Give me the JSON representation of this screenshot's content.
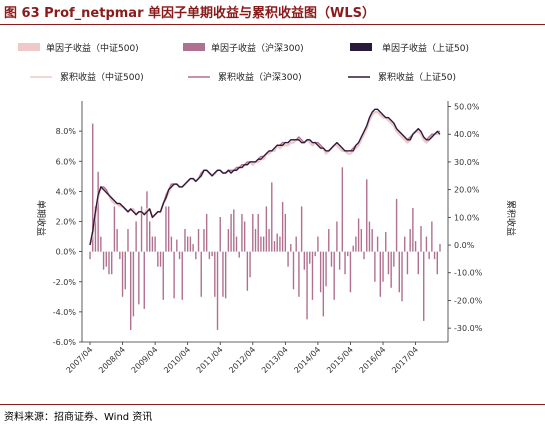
{
  "figure": {
    "title": "图 63 Prof_netpmar 单因子单期收益与累积收益图（WLS）",
    "source": "资料来源：招商证券、Wind 资讯"
  },
  "colors": {
    "zz500": "#efc9c9",
    "hs300": "#b07090",
    "sz50": "#2a1a3a",
    "title_red": "#8b1a1a"
  },
  "chart_data": {
    "type": "bar+line",
    "legend": [
      {
        "label": "单因子收益（中证500)",
        "kind": "bar",
        "color_key": "zz500"
      },
      {
        "label": "单因子收益（沪深300)",
        "kind": "bar",
        "color_key": "hs300"
      },
      {
        "label": "单因子收益（上证50)",
        "kind": "bar",
        "color_key": "sz50"
      },
      {
        "label": "累积收益（中证500)",
        "kind": "line",
        "color_key": "zz500"
      },
      {
        "label": "累积收益（沪深300)",
        "kind": "line",
        "color_key": "hs300"
      },
      {
        "label": "累积收益（上证50)",
        "kind": "line",
        "color_key": "sz50"
      }
    ],
    "left_axis": {
      "label": "单期收益",
      "ylim": [
        -6,
        10
      ],
      "ticks": [
        "-6.0%",
        "-4.0%",
        "-2.0%",
        "0.0%",
        "2.0%",
        "4.0%",
        "6.0%",
        "8.0%"
      ],
      "tick_values": [
        -6,
        -4,
        -2,
        0,
        2,
        4,
        6,
        8
      ]
    },
    "right_axis": {
      "label": "累积收益",
      "ylim": [
        -35,
        52
      ],
      "ticks": [
        "-30.0%",
        "-20.0%",
        "-10.0%",
        "0.0%",
        "10.0%",
        "20.0%",
        "30.0%",
        "40.0%",
        "50.0%"
      ],
      "tick_values": [
        -30,
        -20,
        -10,
        0,
        10,
        20,
        30,
        40,
        50
      ]
    },
    "x_axis": {
      "start_month": "2007/04",
      "n_months": 130,
      "tick_labels": [
        "2007/04",
        "2008/04",
        "2009/04",
        "2010/04",
        "2011/04",
        "2012/04",
        "2013/04",
        "2014/04",
        "2015/04",
        "2016/04",
        "2017/04"
      ]
    },
    "cumulative_zz500": [
      0,
      4,
      11,
      17,
      21,
      20,
      19,
      18,
      16,
      15,
      15,
      14,
      14,
      13,
      12,
      13,
      13,
      11,
      12,
      12,
      11,
      13,
      13,
      10,
      11,
      12,
      12,
      15,
      17,
      19,
      21,
      22,
      22,
      21,
      21,
      22,
      23,
      24,
      24,
      23,
      24,
      25,
      27,
      27,
      26,
      25,
      26,
      27,
      27,
      26,
      26,
      27,
      26,
      27,
      27,
      28,
      28,
      29,
      29,
      30,
      29,
      30,
      30,
      31,
      31,
      33,
      33,
      34,
      34,
      36,
      35,
      36,
      36,
      36,
      37,
      37,
      38,
      38,
      37,
      37,
      38,
      37,
      36,
      37,
      36,
      35,
      35,
      33,
      34,
      35,
      36,
      36,
      35,
      34,
      34,
      33,
      33,
      34,
      35,
      36,
      38,
      40,
      42,
      45,
      47,
      48,
      48,
      47,
      46,
      46,
      45,
      44,
      43,
      41,
      40,
      39,
      38,
      37,
      38,
      40,
      41,
      41,
      40,
      38,
      37,
      38,
      39,
      40,
      40,
      40
    ],
    "cumulative_hs300": [
      0,
      5,
      12,
      18,
      21,
      21,
      20,
      18,
      17,
      16,
      15,
      15,
      14,
      13,
      12,
      13,
      12,
      11,
      12,
      12,
      11,
      12,
      13,
      10,
      11,
      12,
      12,
      15,
      18,
      20,
      22,
      22,
      22,
      21,
      21,
      22,
      23,
      24,
      24,
      23,
      24,
      26,
      27,
      27,
      26,
      25,
      26,
      27,
      27,
      26,
      26,
      27,
      27,
      27,
      28,
      28,
      29,
      29,
      30,
      30,
      30,
      30,
      31,
      32,
      32,
      33,
      34,
      34,
      35,
      36,
      36,
      37,
      37,
      37,
      38,
      38,
      38,
      39,
      38,
      37,
      38,
      38,
      37,
      37,
      37,
      36,
      35,
      34,
      34,
      35,
      36,
      37,
      36,
      35,
      34,
      34,
      34,
      35,
      36,
      37,
      39,
      41,
      43,
      46,
      48,
      49,
      49,
      48,
      47,
      46,
      46,
      45,
      44,
      42,
      41,
      40,
      39,
      38,
      39,
      40,
      41,
      42,
      41,
      39,
      38,
      39,
      40,
      40,
      41,
      41
    ],
    "cumulative_sz50": [
      0,
      5,
      12,
      18,
      21,
      20,
      19,
      18,
      17,
      16,
      15,
      15,
      14,
      13,
      12,
      13,
      12,
      11,
      12,
      12,
      11,
      12,
      13,
      10,
      11,
      12,
      12,
      15,
      17,
      20,
      21,
      22,
      22,
      21,
      21,
      22,
      23,
      24,
      24,
      23,
      24,
      25,
      27,
      27,
      26,
      25,
      26,
      27,
      27,
      26,
      26,
      27,
      26,
      27,
      27,
      28,
      28,
      29,
      29,
      30,
      30,
      30,
      31,
      31,
      32,
      33,
      34,
      34,
      35,
      36,
      36,
      36,
      37,
      37,
      38,
      38,
      38,
      38,
      37,
      37,
      38,
      38,
      37,
      37,
      36,
      35,
      35,
      34,
      34,
      35,
      36,
      37,
      36,
      35,
      34,
      34,
      34,
      34,
      36,
      37,
      39,
      41,
      43,
      46,
      48,
      49,
      49,
      48,
      47,
      46,
      46,
      45,
      44,
      42,
      41,
      40,
      39,
      38,
      38,
      40,
      41,
      42,
      41,
      39,
      38,
      38,
      39,
      40,
      41,
      40
    ],
    "bars_hs300": [
      -0.5,
      8.5,
      3,
      5.3,
      1,
      -1.2,
      -1,
      -1.5,
      -1.5,
      3,
      1.5,
      -0.5,
      -3,
      -2.5,
      1.5,
      -5.2,
      -4.3,
      2,
      -3.5,
      3,
      -3.8,
      4,
      2,
      1,
      1,
      -1,
      -1,
      -3.2,
      3,
      3,
      1,
      -3.1,
      0.8,
      -0.5,
      -3.2,
      1.5,
      1,
      1,
      0.5,
      -0.5,
      1.5,
      -3,
      1.5,
      2.5,
      -0.5,
      -0.3,
      -3,
      -5.2,
      2.3,
      -3,
      -3.1,
      1.5,
      2.5,
      2.8,
      1,
      -0.4,
      2.5,
      2,
      -2.6,
      -1.7,
      2.5,
      1.5,
      2.5,
      1,
      1,
      3,
      1.5,
      4.6,
      0.7,
      1.2,
      1,
      3.3,
      2.5,
      -1,
      0.5,
      -2.5,
      1,
      -3,
      3,
      -1.2,
      -4.5,
      -0.8,
      -3.2,
      -0.3,
      1,
      -2.7,
      -4.3,
      -2.3,
      1.5,
      -1,
      -3.2,
      2,
      -1.2,
      5.6,
      -1.5,
      -0.3,
      -2.7,
      0.4,
      1,
      2.2,
      1.5,
      -0.5,
      4.8,
      2,
      1.5,
      -2,
      1,
      -3,
      -2,
      1.3,
      -1.5,
      -2.4,
      -1,
      3.5,
      -2.7,
      -3.3,
      1,
      -1.5,
      1.5,
      2.9,
      0.7,
      -1.5,
      1.7,
      -4.6,
      1,
      -0.5,
      2,
      -0.5,
      -1.5,
      0.5
    ]
  }
}
